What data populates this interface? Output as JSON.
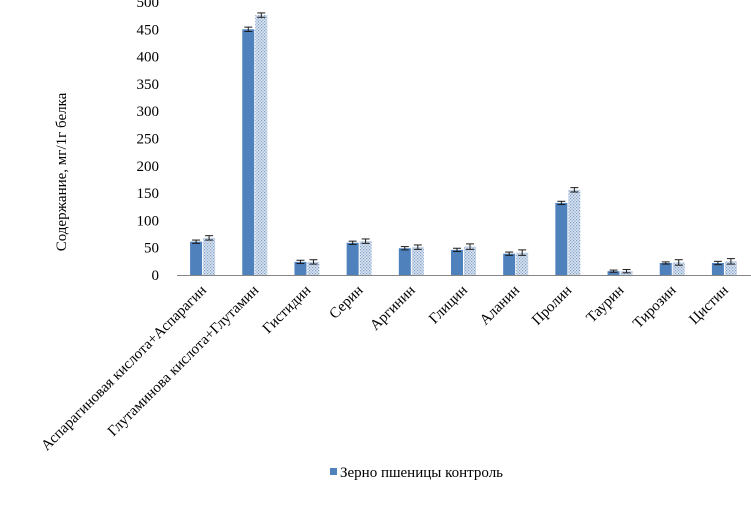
{
  "chart_data": {
    "type": "bar",
    "ylabel": "Содержание, мг/1г белка",
    "xlabel": "",
    "ylim": [
      0,
      500
    ],
    "yticks": [
      0,
      50,
      100,
      150,
      200,
      250,
      300,
      350,
      400,
      450,
      500
    ],
    "grid": false,
    "legend_position": "bottom",
    "categories": [
      "Аспарагиновая кислота+Аспарагин",
      "Глутаминова кислота+Глутамин",
      "Гистидин",
      "Серин",
      "Аргинин",
      "Глицин",
      "Аланин",
      "Пролин",
      "Таурин",
      "Тирозин",
      "Цистин"
    ],
    "series": [
      {
        "name": "Зерно пшеницы контроль",
        "color": "#4f81bd",
        "values": [
          61,
          450,
          24,
          59,
          49,
          46,
          39,
          132,
          7,
          22,
          22
        ],
        "errors": [
          3,
          4,
          3,
          3,
          3,
          3,
          3,
          3,
          2,
          2,
          3
        ]
      },
      {
        "name": "",
        "color": "#b9cde5",
        "pattern": "dotted",
        "values": [
          68,
          476,
          24,
          62,
          51,
          52,
          41,
          156,
          7,
          23,
          25
        ],
        "errors": [
          4,
          4,
          4,
          4,
          4,
          5,
          5,
          4,
          3,
          5,
          5
        ]
      }
    ]
  }
}
